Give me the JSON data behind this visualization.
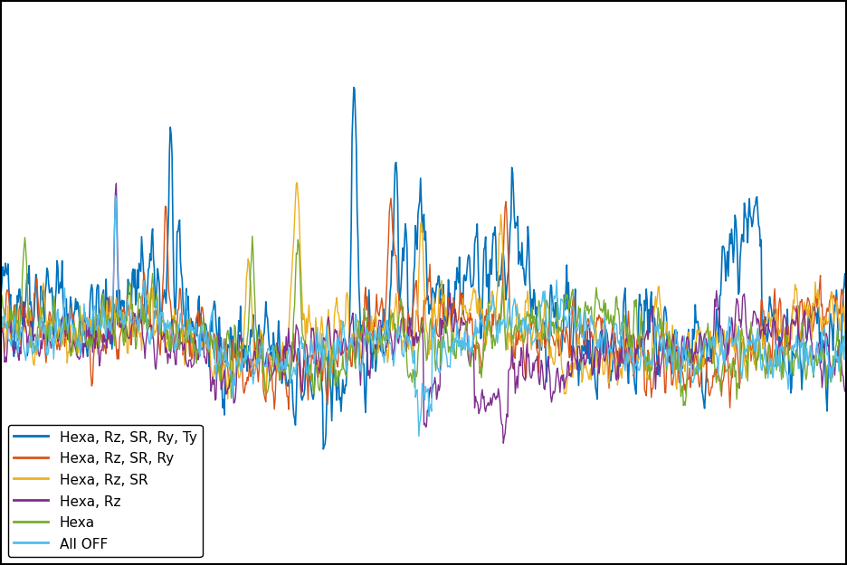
{
  "title": "",
  "xlabel": "",
  "ylabel": "",
  "legend_labels": [
    "Hexa, Rz, SR, Ry, Ty",
    "Hexa, Rz, SR, Ry",
    "Hexa, Rz, SR",
    "Hexa, Rz",
    "Hexa",
    "All OFF"
  ],
  "line_colors": [
    "#0072BD",
    "#D95319",
    "#EDB120",
    "#7E2F8E",
    "#77AC30",
    "#4DBEEE"
  ],
  "line_widths": [
    1.0,
    1.0,
    1.0,
    1.0,
    1.0,
    1.0
  ],
  "background_color": "#ffffff",
  "figure_background": "#000000",
  "grid_color": "#b0b0b0",
  "xlim": [
    0,
    1000
  ],
  "ylim_low": -10,
  "ylim_high": 10,
  "n_points": 1000,
  "seed": 42,
  "legend_loc": "lower left",
  "legend_fontsize": 11
}
